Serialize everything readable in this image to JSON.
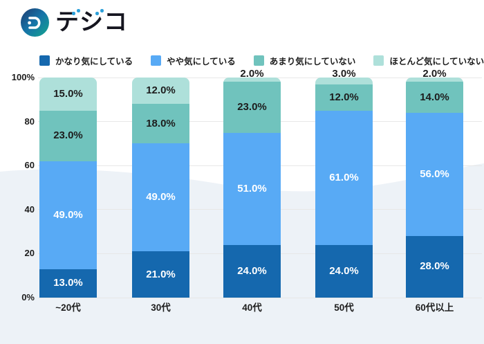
{
  "logo": {
    "text": "デジコ",
    "base_chars": [
      "テ",
      "シ",
      "コ"
    ],
    "icon": "digico-badge-icon",
    "dakuten_color": "#2b9fd9",
    "badge_gradient": [
      "#1d3a6e",
      "#1673a8",
      "#14a58e"
    ]
  },
  "colors": {
    "grid": "#e7e7e7",
    "wave_background": "#edf2f7",
    "axis_text": "#1d1d1d"
  },
  "chart_data": {
    "type": "bar",
    "stacked": true,
    "title": "",
    "categories": [
      "~20代",
      "30代",
      "40代",
      "50代",
      "60代以上"
    ],
    "series": [
      {
        "name": "かなり気にしている",
        "color": "#1568ae",
        "label_color": "#ffffff",
        "values": [
          13.0,
          21.0,
          24.0,
          24.0,
          28.0
        ]
      },
      {
        "name": "やや気にしている",
        "color": "#58aaf5",
        "label_color": "#ffffff",
        "values": [
          49.0,
          49.0,
          51.0,
          61.0,
          56.0
        ]
      },
      {
        "name": "あまり気にしていない",
        "color": "#70c3bd",
        "label_color": "#1d1d1d",
        "values": [
          23.0,
          18.0,
          23.0,
          12.0,
          14.0
        ]
      },
      {
        "name": "ほとんど気にしていない",
        "color": "#aee0da",
        "label_color": "#1d1d1d",
        "values": [
          15.0,
          12.0,
          2.0,
          3.0,
          2.0
        ]
      }
    ],
    "ylim": [
      0,
      100
    ],
    "ytick_labels": [
      "0%",
      "20",
      "40",
      "60",
      "80",
      "100%"
    ],
    "value_suffix": "%",
    "value_decimals": 1,
    "small_segment_threshold": 4,
    "grid": true,
    "legend_position": "top"
  }
}
